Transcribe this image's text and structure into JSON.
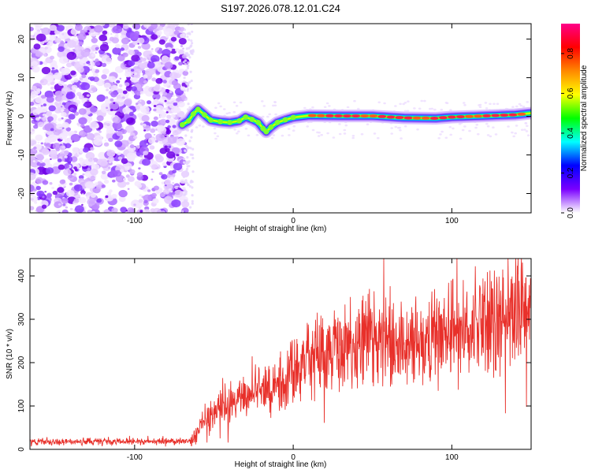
{
  "title": "S197.2026.078.12.01.C24",
  "chart_data": [
    {
      "type": "heatmap",
      "name": "spectrogram",
      "xlabel": "Height of straight line (km)",
      "ylabel": "Frequency (Hz)",
      "xlim": [
        -166,
        150
      ],
      "ylim": [
        -25,
        24
      ],
      "xticks": [
        -100,
        0,
        100
      ],
      "yticks": [
        -20,
        -10,
        0,
        10,
        20
      ],
      "noise_region_x": [
        -166,
        -62
      ],
      "ridge": [
        {
          "x": -70,
          "y": -2.2
        },
        {
          "x": -66,
          "y": -1.2
        },
        {
          "x": -63,
          "y": 0.6
        },
        {
          "x": -60,
          "y": 1.8
        },
        {
          "x": -56,
          "y": 0.4
        },
        {
          "x": -52,
          "y": -1.0
        },
        {
          "x": -46,
          "y": -1.4
        },
        {
          "x": -40,
          "y": -1.6
        },
        {
          "x": -34,
          "y": -1.2
        },
        {
          "x": -30,
          "y": -0.2
        },
        {
          "x": -26,
          "y": -0.8
        },
        {
          "x": -22,
          "y": -1.6
        },
        {
          "x": -19,
          "y": -3.2
        },
        {
          "x": -17,
          "y": -4.0
        },
        {
          "x": -14,
          "y": -2.8
        },
        {
          "x": -10,
          "y": -1.6
        },
        {
          "x": -5,
          "y": -0.9
        },
        {
          "x": 0,
          "y": -0.3
        },
        {
          "x": 10,
          "y": 0.2
        },
        {
          "x": 30,
          "y": 0.1
        },
        {
          "x": 50,
          "y": 0.1
        },
        {
          "x": 70,
          "y": -0.4
        },
        {
          "x": 90,
          "y": -0.5
        },
        {
          "x": 100,
          "y": -0.2
        },
        {
          "x": 120,
          "y": 0.1
        },
        {
          "x": 140,
          "y": 0.4
        },
        {
          "x": 150,
          "y": 0.8
        }
      ],
      "colorbar": {
        "label": "Normalized spectral amplitude",
        "range": [
          0,
          0.95
        ],
        "ticks": [
          0,
          0.2,
          0.4,
          0.6,
          0.8
        ],
        "tick_labels": [
          "0.0",
          "0.2",
          "0.4",
          "0.6",
          "0.8"
        ],
        "colors": [
          "#ffffff",
          "#7a00ff",
          "#0000ff",
          "#00ffff",
          "#00ff00",
          "#ffff00",
          "#ff8800",
          "#ff0000",
          "#ff0088"
        ]
      }
    },
    {
      "type": "line",
      "name": "snr",
      "xlabel": "Height of straight line (km)",
      "ylabel": "SNR (10 * v/v)",
      "xlim": [
        -166,
        150
      ],
      "ylim": [
        0,
        440
      ],
      "xticks": [
        -100,
        0,
        100
      ],
      "yticks": [
        0,
        100,
        200,
        300,
        400
      ],
      "color": "#e8302a",
      "trend": [
        {
          "x": -166,
          "y": 18
        },
        {
          "x": -65,
          "y": 18
        },
        {
          "x": -60,
          "y": 40
        },
        {
          "x": -55,
          "y": 70
        },
        {
          "x": -45,
          "y": 100
        },
        {
          "x": -35,
          "y": 110
        },
        {
          "x": -25,
          "y": 125
        },
        {
          "x": -15,
          "y": 145
        },
        {
          "x": -5,
          "y": 160
        },
        {
          "x": 5,
          "y": 190
        },
        {
          "x": 15,
          "y": 220
        },
        {
          "x": 25,
          "y": 235
        },
        {
          "x": 35,
          "y": 245
        },
        {
          "x": 50,
          "y": 250
        },
        {
          "x": 70,
          "y": 245
        },
        {
          "x": 90,
          "y": 260
        },
        {
          "x": 110,
          "y": 280
        },
        {
          "x": 125,
          "y": 295
        },
        {
          "x": 140,
          "y": 315
        },
        {
          "x": 150,
          "y": 330
        }
      ]
    }
  ]
}
